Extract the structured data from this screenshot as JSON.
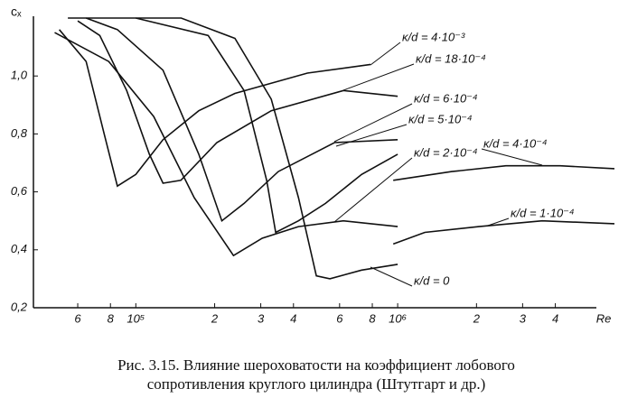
{
  "chart_data": {
    "type": "line",
    "y_label": "cₓ",
    "x_label": "Re",
    "caption": [
      "Рис. 3.15. Влияние шероховатости на коэффициент лобового",
      "сопротивления круглого цилиндра (Штутгарт и др.)"
    ],
    "log_x": true,
    "grid": false,
    "xlim": [
      40000,
      7000000
    ],
    "ylim": [
      0.2,
      1.2
    ],
    "xticks": [
      {
        "value": 60000,
        "label": "6"
      },
      {
        "value": 80000,
        "label": "8"
      },
      {
        "value": 100000,
        "label": "10⁵"
      },
      {
        "value": 200000,
        "label": "2"
      },
      {
        "value": 300000,
        "label": "3"
      },
      {
        "value": 400000,
        "label": "4"
      },
      {
        "value": 600000,
        "label": "6"
      },
      {
        "value": 800000,
        "label": "8"
      },
      {
        "value": 1000000,
        "label": "10⁶"
      },
      {
        "value": 2000000,
        "label": "2"
      },
      {
        "value": 3000000,
        "label": "3"
      },
      {
        "value": 4000000,
        "label": "4"
      }
    ],
    "yticks": [
      {
        "value": 0.2,
        "label": "0,2"
      },
      {
        "value": 0.4,
        "label": "0,4"
      },
      {
        "value": 0.6,
        "label": "0,6"
      },
      {
        "value": 0.8,
        "label": "0,8"
      },
      {
        "value": 1.0,
        "label": "1,0"
      }
    ],
    "series": [
      {
        "name": "κ/d = 4·10⁻³",
        "color": "#111",
        "x": [
          51000,
          64600,
          75700,
          85000,
          100000,
          127000,
          174000,
          239000,
          452000,
          788000
        ],
        "values": [
          1.16,
          1.05,
          0.8,
          0.62,
          0.66,
          0.78,
          0.88,
          0.94,
          1.01,
          1.04
        ]
      },
      {
        "name": "κ/d = 18·10⁻⁴",
        "color": "#111",
        "x": [
          60000,
          72800,
          92300,
          112600,
          127000,
          148600,
          204000,
          329000,
          621000,
          1000000
        ],
        "values": [
          1.19,
          1.14,
          0.95,
          0.73,
          0.63,
          0.64,
          0.77,
          0.88,
          0.95,
          0.93
        ]
      },
      {
        "name": "κ/d = 6·10⁻⁴",
        "color": "#111",
        "x": [
          64600,
          85000,
          127000,
          174000,
          213000,
          259000,
          350000,
          574000,
          1000000
        ],
        "values": [
          1.2,
          1.16,
          1.02,
          0.73,
          0.5,
          0.56,
          0.67,
          0.77,
          0.78
        ]
      },
      {
        "name": "κ/d = 5·10⁻⁴",
        "color": "#111",
        "x": [
          100000,
          189000,
          259000,
          316000,
          342000,
          418000,
          530000,
          728000,
          1000000
        ],
        "values": [
          1.2,
          1.14,
          0.95,
          0.64,
          0.46,
          0.5,
          0.56,
          0.66,
          0.73
        ]
      },
      {
        "name": "κ/d = 2·10⁻⁴",
        "color": "#111",
        "x": [
          49000,
          78800,
          117000,
          167000,
          236000,
          304000,
          418000,
          621000,
          1000000
        ],
        "values": [
          1.15,
          1.05,
          0.86,
          0.58,
          0.38,
          0.44,
          0.48,
          0.5,
          0.48
        ]
      },
      {
        "name": "κ/d = 4·10⁻⁴",
        "color": "#111",
        "x": [
          962000,
          1610000,
          2590000,
          4170000,
          6730000
        ],
        "values": [
          0.64,
          0.67,
          0.69,
          0.69,
          0.68
        ]
      },
      {
        "name": "κ/d = 1·10⁻⁴",
        "color": "#111",
        "x": [
          962000,
          1270000,
          2045000,
          3565000,
          6730000
        ],
        "values": [
          0.42,
          0.46,
          0.48,
          0.5,
          0.49
        ]
      },
      {
        "name": "κ/d = 0",
        "color": "#111",
        "x": [
          55000,
          149000,
          239000,
          329000,
          418000,
          489000,
          551000,
          728000,
          1000000
        ],
        "values": [
          1.2,
          1.2,
          1.13,
          0.92,
          0.58,
          0.31,
          0.3,
          0.33,
          0.35
        ]
      }
    ]
  }
}
